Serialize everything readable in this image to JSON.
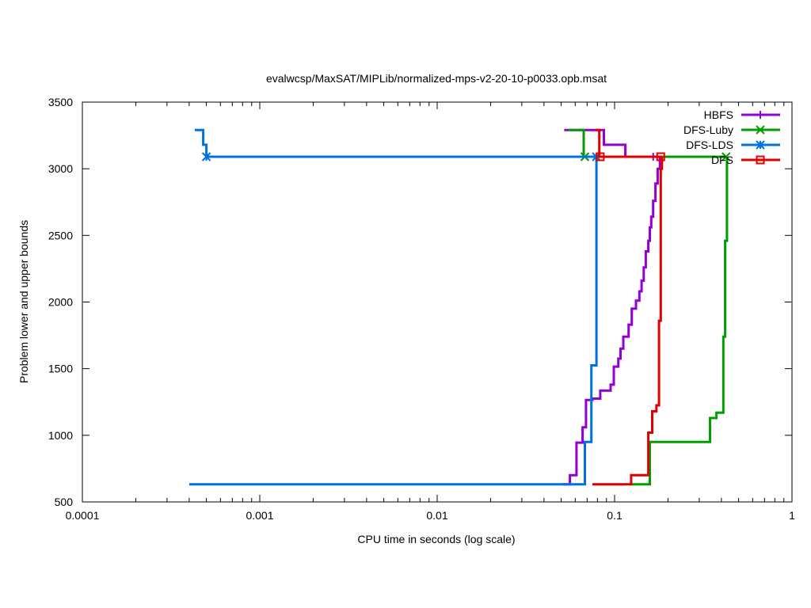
{
  "chart_data": {
    "type": "line",
    "title": "evalwcsp/MaxSAT/MIPLib/normalized-mps-v2-20-10-p0033.opb.msat",
    "xlabel": "CPU time in seconds (log scale)",
    "ylabel": "Problem lower and upper bounds",
    "x_scale": "log",
    "xlim": [
      0.0001,
      1
    ],
    "ylim": [
      500,
      3500
    ],
    "x_ticks": [
      {
        "value": 0.0001,
        "label": "0.0001"
      },
      {
        "value": 0.001,
        "label": "0.001"
      },
      {
        "value": 0.01,
        "label": "0.01"
      },
      {
        "value": 0.1,
        "label": "0.1"
      },
      {
        "value": 1,
        "label": "1"
      }
    ],
    "y_ticks": [
      {
        "value": 500,
        "label": "500"
      },
      {
        "value": 1000,
        "label": "1000"
      },
      {
        "value": 1500,
        "label": "1500"
      },
      {
        "value": 2000,
        "label": "2000"
      },
      {
        "value": 2500,
        "label": "2500"
      },
      {
        "value": 3000,
        "label": "3000"
      },
      {
        "value": 3500,
        "label": "3500"
      }
    ],
    "grid": false,
    "legend_position": "top-right",
    "series": [
      {
        "name": "HBFS",
        "color": "#9400d3",
        "marker": "plus",
        "upper": [
          [
            0.052,
            3290
          ],
          [
            0.087,
            3290
          ],
          [
            0.087,
            3180
          ],
          [
            0.115,
            3180
          ],
          [
            0.115,
            3090
          ],
          [
            0.18,
            3090
          ]
        ],
        "lower": [
          [
            0.051,
            632
          ],
          [
            0.056,
            632
          ],
          [
            0.056,
            700
          ],
          [
            0.061,
            700
          ],
          [
            0.061,
            945
          ],
          [
            0.066,
            945
          ],
          [
            0.066,
            1060
          ],
          [
            0.069,
            1060
          ],
          [
            0.069,
            1265
          ],
          [
            0.075,
            1265
          ],
          [
            0.075,
            1275
          ],
          [
            0.083,
            1275
          ],
          [
            0.083,
            1335
          ],
          [
            0.095,
            1335
          ],
          [
            0.095,
            1380
          ],
          [
            0.099,
            1380
          ],
          [
            0.099,
            1515
          ],
          [
            0.105,
            1515
          ],
          [
            0.105,
            1575
          ],
          [
            0.108,
            1575
          ],
          [
            0.108,
            1650
          ],
          [
            0.112,
            1650
          ],
          [
            0.112,
            1740
          ],
          [
            0.12,
            1740
          ],
          [
            0.12,
            1830
          ],
          [
            0.125,
            1830
          ],
          [
            0.125,
            1950
          ],
          [
            0.132,
            1950
          ],
          [
            0.132,
            2010
          ],
          [
            0.138,
            2010
          ],
          [
            0.138,
            2080
          ],
          [
            0.142,
            2080
          ],
          [
            0.142,
            2160
          ],
          [
            0.146,
            2160
          ],
          [
            0.146,
            2260
          ],
          [
            0.15,
            2260
          ],
          [
            0.15,
            2380
          ],
          [
            0.155,
            2380
          ],
          [
            0.155,
            2460
          ],
          [
            0.158,
            2460
          ],
          [
            0.158,
            2560
          ],
          [
            0.161,
            2560
          ],
          [
            0.161,
            2640
          ],
          [
            0.165,
            2640
          ],
          [
            0.165,
            2760
          ],
          [
            0.17,
            2760
          ],
          [
            0.17,
            2890
          ],
          [
            0.175,
            2890
          ],
          [
            0.175,
            3000
          ],
          [
            0.18,
            3000
          ],
          [
            0.18,
            3090
          ]
        ],
        "markers": [
          [
            0.165,
            3090
          ]
        ]
      },
      {
        "name": "DFS-Luby",
        "color": "#009e00",
        "marker": "x",
        "upper": [
          [
            0.055,
            3290
          ],
          [
            0.067,
            3290
          ],
          [
            0.067,
            3090
          ],
          [
            0.43,
            3090
          ]
        ],
        "lower": [
          [
            0.125,
            632
          ],
          [
            0.158,
            632
          ],
          [
            0.158,
            950
          ],
          [
            0.345,
            950
          ],
          [
            0.345,
            1130
          ],
          [
            0.375,
            1130
          ],
          [
            0.375,
            1170
          ],
          [
            0.41,
            1170
          ],
          [
            0.41,
            1740
          ],
          [
            0.42,
            1740
          ],
          [
            0.42,
            2460
          ],
          [
            0.43,
            2460
          ],
          [
            0.43,
            3090
          ]
        ],
        "markers": [
          [
            0.068,
            3090
          ],
          [
            0.425,
            3090
          ]
        ]
      },
      {
        "name": "DFS-LDS",
        "color": "#0072e0",
        "marker": "asterisk",
        "upper": [
          [
            0.00043,
            3290
          ],
          [
            0.00048,
            3290
          ],
          [
            0.00048,
            3180
          ],
          [
            0.0005,
            3180
          ],
          [
            0.0005,
            3090
          ],
          [
            0.079,
            3090
          ]
        ],
        "lower": [
          [
            0.0004,
            632
          ],
          [
            0.068,
            632
          ],
          [
            0.068,
            950
          ],
          [
            0.074,
            950
          ],
          [
            0.074,
            1525
          ],
          [
            0.079,
            1525
          ],
          [
            0.079,
            3090
          ]
        ],
        "markers": [
          [
            0.0005,
            3090
          ],
          [
            0.079,
            3090
          ]
        ]
      },
      {
        "name": "DFS",
        "color": "#e00000",
        "marker": "square",
        "upper": [
          [
            0.078,
            3290
          ],
          [
            0.082,
            3290
          ],
          [
            0.082,
            3090
          ],
          [
            0.185,
            3090
          ]
        ],
        "lower": [
          [
            0.075,
            632
          ],
          [
            0.124,
            632
          ],
          [
            0.124,
            700
          ],
          [
            0.155,
            700
          ],
          [
            0.155,
            1020
          ],
          [
            0.163,
            1020
          ],
          [
            0.163,
            1180
          ],
          [
            0.172,
            1180
          ],
          [
            0.172,
            1225
          ],
          [
            0.178,
            1225
          ],
          [
            0.178,
            1860
          ],
          [
            0.182,
            1860
          ],
          [
            0.182,
            3000
          ],
          [
            0.185,
            3000
          ],
          [
            0.185,
            3090
          ]
        ],
        "markers": [
          [
            0.083,
            3090
          ],
          [
            0.182,
            3090
          ]
        ]
      }
    ]
  }
}
